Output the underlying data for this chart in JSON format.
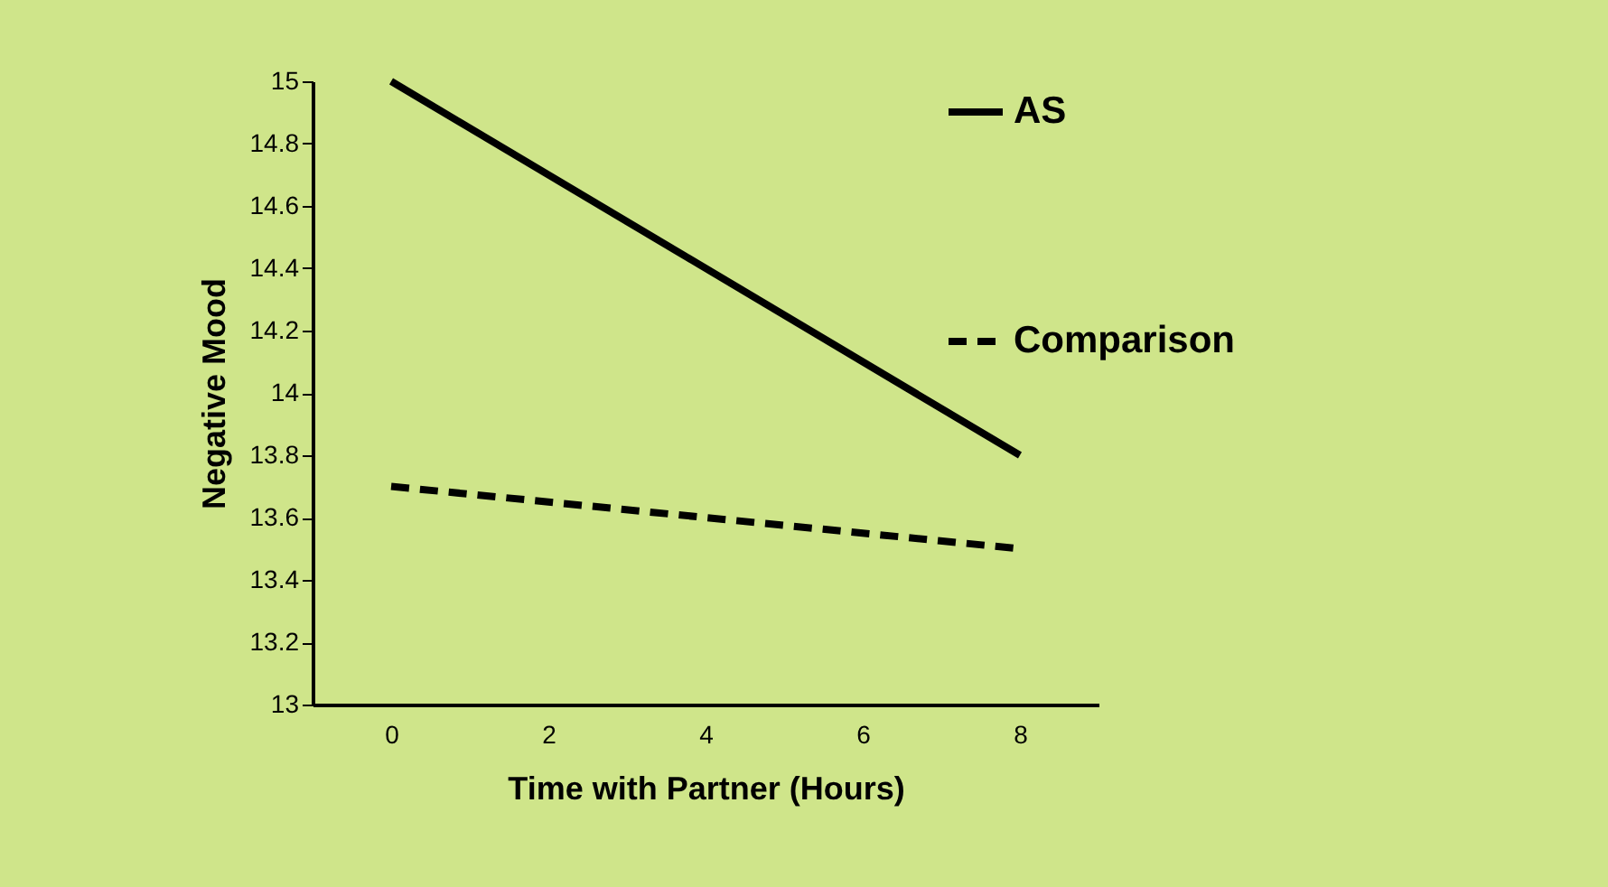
{
  "chart_data": {
    "type": "line",
    "xlabel": "Time with Partner (Hours)",
    "ylabel": "Negative Mood",
    "xlim": [
      -1,
      9
    ],
    "xticks": [
      0,
      2,
      4,
      6,
      8
    ],
    "ylim": [
      13,
      15
    ],
    "yticks": [
      13,
      13.2,
      13.4,
      13.6,
      13.8,
      14,
      14.2,
      14.4,
      14.6,
      14.8,
      15
    ],
    "x": [
      0,
      8
    ],
    "grid": false,
    "legend": "right",
    "marker": "none",
    "series": [
      {
        "name": "AS",
        "color": "#000000",
        "values": [
          15,
          13.8
        ],
        "line_style": "solid"
      },
      {
        "name": "Comparison",
        "color": "#000000",
        "values": [
          13.7,
          13.5
        ],
        "line_style": "dashed"
      }
    ]
  }
}
